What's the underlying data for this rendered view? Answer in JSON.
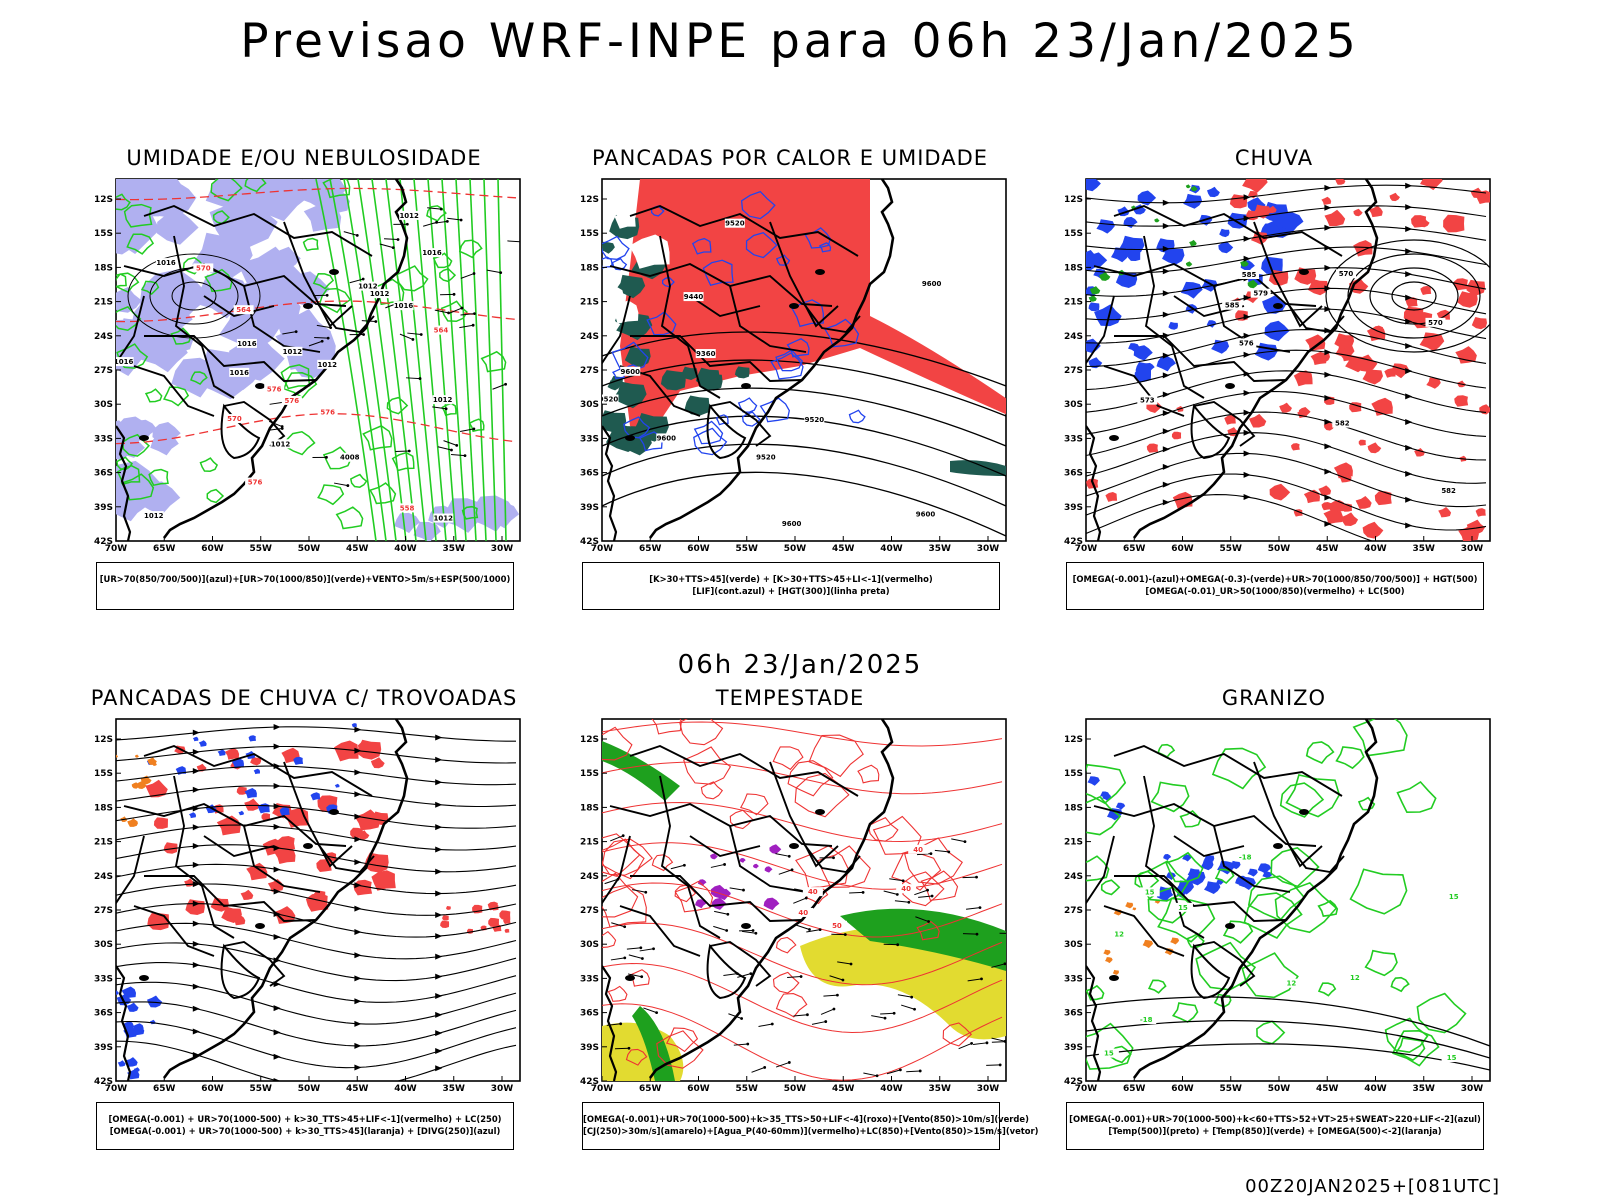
{
  "main_title": "Previsao WRF-INPE  para 06h 23/Jan/2025",
  "mid_title": "06h 23/Jan/2025",
  "footer_code": "00Z20JAN2025+[081UTC]",
  "axes": {
    "lat_labels": [
      "12S",
      "15S",
      "18S",
      "21S",
      "24S",
      "27S",
      "30S",
      "33S",
      "36S",
      "39S",
      "42S"
    ],
    "lon_labels": [
      "70W",
      "65W",
      "60W",
      "55W",
      "50W",
      "45W",
      "40W",
      "35W",
      "30W"
    ]
  },
  "colors": {
    "blue_fill": "#b0b0f0",
    "green_contour": "#22cc22",
    "red_contour": "#ee3333",
    "red_fill": "#f24444",
    "dark_teal": "#1f5a50",
    "blue_line": "#2244ee",
    "yellow_fill": "#e2db30",
    "green_fill": "#1ea01e",
    "purple": "#a020c0",
    "orange": "#f08020"
  },
  "panels": [
    {
      "id": "umidade",
      "title": "UMIDADE E/OU NEBULOSIDADE",
      "legend": [
        "[UR>70(850/700/500)](azul)+[UR>70(1000/850)](verde)+VENTO>5m/s+ESP(500/1000)"
      ],
      "contour_labels": [
        "1012",
        "1012",
        "1012",
        "1016",
        "1012",
        "1012",
        "1016",
        "1016",
        "1016",
        "1016",
        "1012",
        "1016",
        "4008",
        "1012",
        "1012",
        "1012"
      ],
      "thickness_labels": [
        "576",
        "576",
        "576",
        "576",
        "570",
        "564",
        "564",
        "570",
        "558"
      ]
    },
    {
      "id": "pancadas_calor",
      "title": "PANCADAS POR CALOR E UMIDADE",
      "legend": [
        "[K>30+TTS>45](verde) + [K>30+TTS>45+LI<-1](vermelho)",
        "[LIF](cont.azul) + [HGT(300)](linha preta)"
      ],
      "contour_labels": [
        "9600",
        "9600",
        "9600",
        "9520",
        "9520",
        "9600",
        "9520",
        "9440",
        "9360",
        "9520",
        "9600"
      ]
    },
    {
      "id": "chuva",
      "title": "CHUVA",
      "legend": [
        "[OMEGA(-0.001)-(azul)+OMEGA(-0.3)-(verde)+UR>70(1000/850/700/500)] + HGT(500)",
        "[OMEGA(-0.01)_UR>50(1000/850)(vermelho) + LC(500)"
      ],
      "contour_labels": [
        "582",
        "585",
        "585",
        "582",
        "579",
        "576",
        "570",
        "573",
        "570"
      ]
    },
    {
      "id": "trovoadas",
      "title": "PANCADAS DE CHUVA C/ TROVOADAS",
      "legend": [
        "[OMEGA(-0.001) + UR>70(1000-500) + k>30_TTS>45+LIF<-1](vermelho) + LC(250)",
        "[OMEGA(-0.001) + UR>70(1000-500) + k>30_TTS>45](laranja) + [DIVG(250)](azul)"
      ],
      "contour_labels": []
    },
    {
      "id": "tempestade",
      "title": "TEMPESTADE",
      "legend": [
        "[OMEGA(-0.001)+UR>70(1000-500)+k>35_TTS>50+LIF<-4](roxo)+[Vento(850)>10m/s](verde)",
        "[CJ(250)>30m/s](amarelo)+[Agua_P(40-60mm)](vermelho)+LC(850)+[Vento(850)>15m/s](vetor)"
      ],
      "contour_labels": [
        "40",
        "40",
        "50",
        "40",
        "40"
      ]
    },
    {
      "id": "granizo",
      "title": "GRANIZO",
      "legend": [
        "[OMEGA(-0.001)+UR>70(1000-500)+k<60+TTS>52+VT>25+SWEAT>220+LIF<-2](azul)",
        "[Temp(500)](preto) + [Temp(850)](verde) + [OMEGA(500)<-2](laranja)"
      ],
      "contour_labels": [
        "15",
        "15",
        "15",
        "15",
        "12",
        "12",
        "12",
        "-18",
        "-18",
        "15"
      ]
    }
  ]
}
